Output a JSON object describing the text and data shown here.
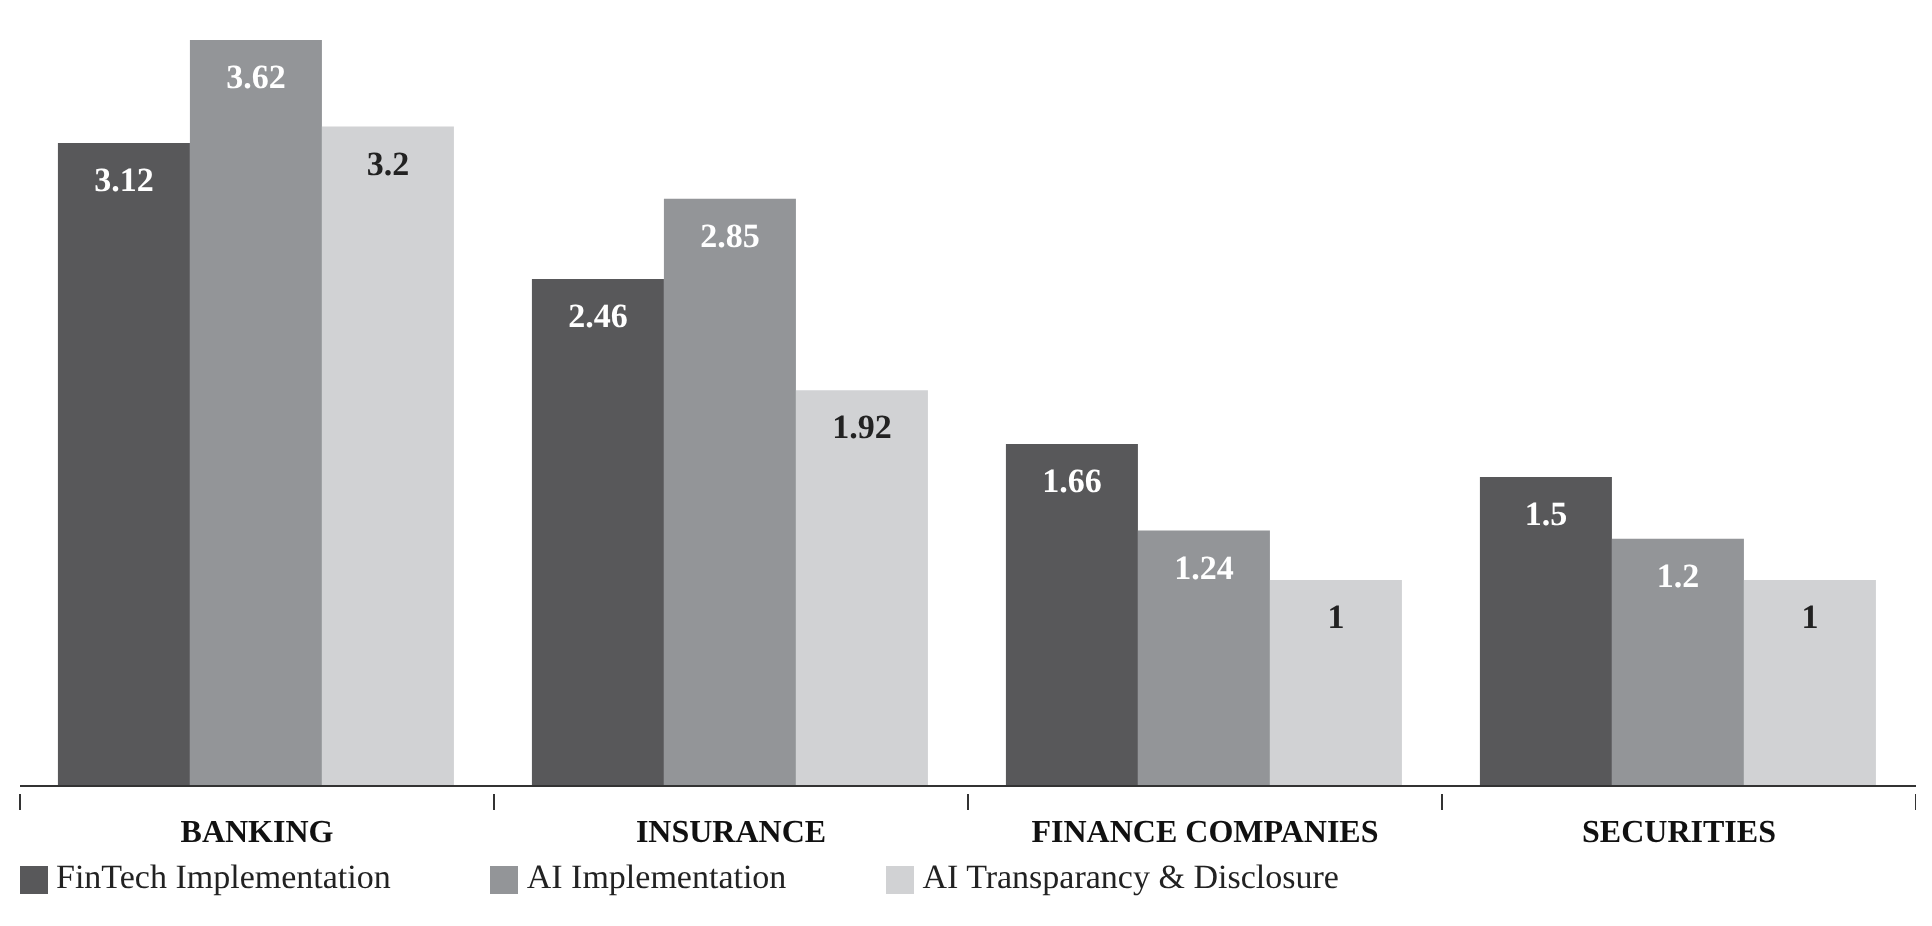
{
  "chart_data": {
    "type": "bar",
    "categories": [
      "BANKING",
      "INSURANCE",
      "FINANCE COMPANIES",
      "SECURITIES"
    ],
    "series": [
      {
        "name": "FinTech Implementation",
        "color": "#58585a",
        "values": [
          3.12,
          2.46,
          1.66,
          1.5
        ]
      },
      {
        "name": "AI Implementation",
        "color": "#939598",
        "values": [
          3.62,
          2.85,
          1.24,
          1.2
        ]
      },
      {
        "name": "AI Transparancy & Disclosure",
        "color": "#d1d2d4",
        "values": [
          3.2,
          1.92,
          1,
          1
        ]
      }
    ],
    "data_labels": true,
    "legend": "bottom left"
  }
}
